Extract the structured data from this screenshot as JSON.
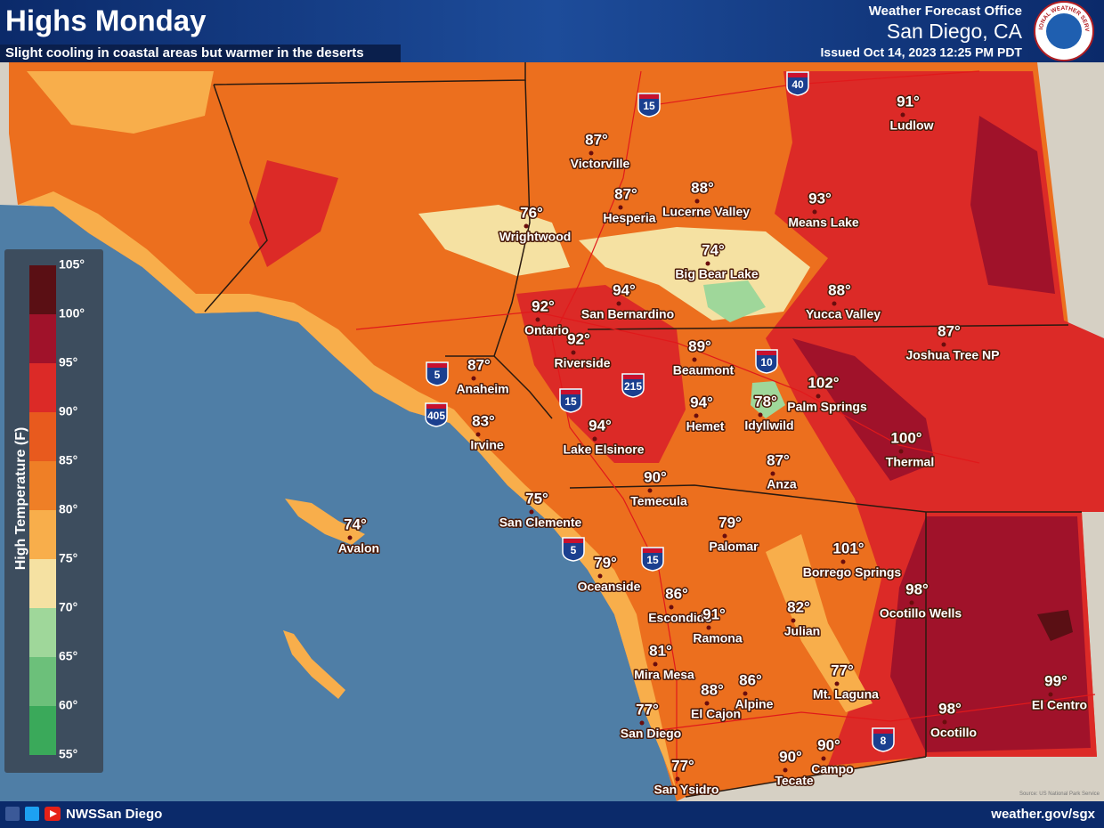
{
  "header": {
    "title": "Highs Monday",
    "subtitle": "Slight cooling in coastal areas but warmer in the deserts",
    "office": "Weather Forecast Office",
    "location": "San Diego, CA",
    "issued": "Issued Oct 14, 2023 12:25 PM PDT",
    "logo": "NATIONAL WEATHER SERVICE"
  },
  "legend": {
    "title": "High Temperature (F)",
    "ticks": [
      "105°",
      "100°",
      "95°",
      "90°",
      "85°",
      "80°",
      "75°",
      "70°",
      "65°",
      "60°",
      "55°"
    ],
    "bands": [
      "#5a0f14",
      "#a0122a",
      "#dc2a27",
      "#e85a1e",
      "#ef7f26",
      "#f8ae4b",
      "#f5e1a2",
      "#9fd79a",
      "#6cc07a",
      "#3aa95a"
    ]
  },
  "cities": [
    {
      "name": "Ludlow",
      "temp": "91°"
    },
    {
      "name": "Victorville",
      "temp": "87°"
    },
    {
      "name": "Hesperia",
      "temp": "87°"
    },
    {
      "name": "Lucerne Valley",
      "temp": "88°"
    },
    {
      "name": "Means Lake",
      "temp": "93°"
    },
    {
      "name": "Wrightwood",
      "temp": "76°"
    },
    {
      "name": "Big Bear Lake",
      "temp": "74°"
    },
    {
      "name": "Ontario",
      "temp": "92°"
    },
    {
      "name": "San Bernardino",
      "temp": "94°"
    },
    {
      "name": "Yucca Valley",
      "temp": "88°"
    },
    {
      "name": "Joshua Tree NP",
      "temp": "87°"
    },
    {
      "name": "Riverside",
      "temp": "92°"
    },
    {
      "name": "Beaumont",
      "temp": "89°"
    },
    {
      "name": "Anaheim",
      "temp": "87°"
    },
    {
      "name": "Palm Springs",
      "temp": "102°"
    },
    {
      "name": "Hemet",
      "temp": "94°"
    },
    {
      "name": "Idyllwild",
      "temp": "78°"
    },
    {
      "name": "Irvine",
      "temp": "83°"
    },
    {
      "name": "Lake Elsinore",
      "temp": "94°"
    },
    {
      "name": "Thermal",
      "temp": "100°"
    },
    {
      "name": "Anza",
      "temp": "87°"
    },
    {
      "name": "Temecula",
      "temp": "90°"
    },
    {
      "name": "San Clemente",
      "temp": "75°"
    },
    {
      "name": "Palomar",
      "temp": "79°"
    },
    {
      "name": "Avalon",
      "temp": "74°"
    },
    {
      "name": "Borrego Springs",
      "temp": "101°"
    },
    {
      "name": "Oceanside",
      "temp": "79°"
    },
    {
      "name": "Ocotillo Wells",
      "temp": "98°"
    },
    {
      "name": "Escondido",
      "temp": "86°"
    },
    {
      "name": "Ramona",
      "temp": "91°"
    },
    {
      "name": "Julian",
      "temp": "82°"
    },
    {
      "name": "Mira Mesa",
      "temp": "81°"
    },
    {
      "name": "Mt. Laguna",
      "temp": "77°"
    },
    {
      "name": "El Cajon",
      "temp": "88°"
    },
    {
      "name": "Alpine",
      "temp": "86°"
    },
    {
      "name": "El Centro",
      "temp": "99°"
    },
    {
      "name": "Ocotillo",
      "temp": "98°"
    },
    {
      "name": "San Diego",
      "temp": "77°"
    },
    {
      "name": "Campo",
      "temp": "90°"
    },
    {
      "name": "Tecate",
      "temp": "90°"
    },
    {
      "name": "San Ysidro",
      "temp": "77°"
    }
  ],
  "interstates": [
    "40",
    "15",
    "5",
    "405",
    "10",
    "215",
    "15",
    "5",
    "15",
    "8"
  ],
  "source": "Source: US National Park Service",
  "footer": {
    "social": "NWSSan Diego",
    "url": "weather.gov/sgx"
  }
}
